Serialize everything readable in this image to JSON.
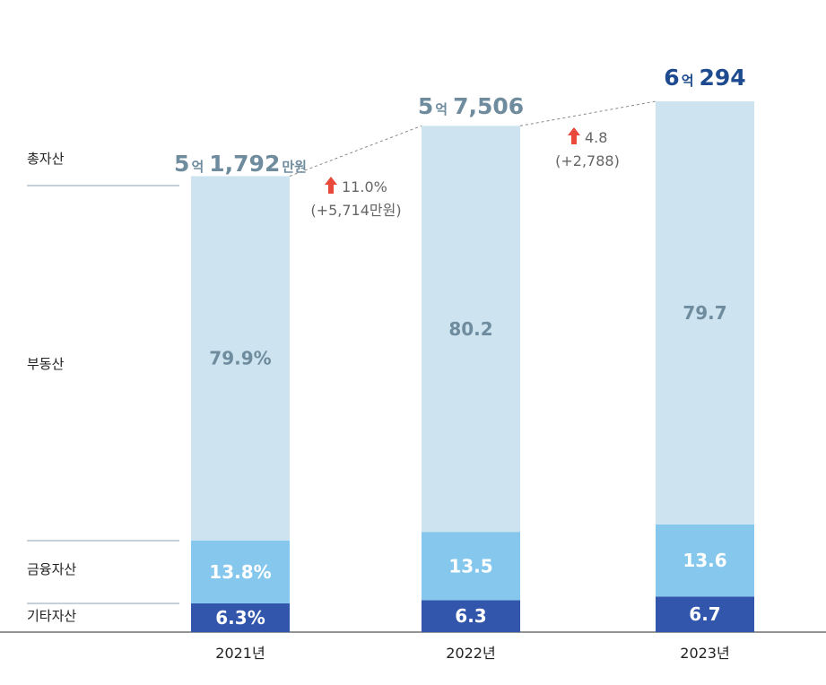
{
  "chart_data": {
    "type": "bar",
    "stacked": true,
    "categories": [
      "2021년",
      "2022년",
      "2023년"
    ],
    "row_labels": [
      "총자산",
      "부동산",
      "금융자산",
      "기타자산"
    ],
    "series": [
      {
        "name": "부동산",
        "values": [
          79.9,
          80.2,
          79.7
        ],
        "labels": [
          "79.9%",
          "80.2",
          "79.7"
        ],
        "color": "#cde4f0",
        "text_color": "#6f8c9e"
      },
      {
        "name": "금융자산",
        "values": [
          13.8,
          13.5,
          13.6
        ],
        "labels": [
          "13.8%",
          "13.5",
          "13.6"
        ],
        "color": "#86c8ed",
        "text_color": "#ffffff"
      },
      {
        "name": "기타자산",
        "values": [
          6.3,
          6.3,
          6.7
        ],
        "labels": [
          "6.3%",
          "6.3",
          "6.7"
        ],
        "color": "#3356ad",
        "text_color": "#ffffff"
      }
    ],
    "totals": [
      {
        "value_manwon": 51792,
        "label_num1": "5",
        "label_unit1": "억",
        "label_num2": "1,792",
        "label_unit2": "만원",
        "color": "#6f8c9e"
      },
      {
        "value_manwon": 57506,
        "label_num1": "5",
        "label_unit1": "억",
        "label_num2": "7,506",
        "label_unit2": "",
        "color": "#6f8c9e"
      },
      {
        "value_manwon": 60294,
        "label_num1": "6",
        "label_unit1": "억",
        "label_num2": "294",
        "label_unit2": "",
        "color": "#1e4b8f"
      }
    ],
    "changes": [
      {
        "pct": "11.0%",
        "abs": "(+5,714만원)"
      },
      {
        "pct": "4.8",
        "abs": "(+2,788)"
      }
    ],
    "arrow_color": "#e8493b",
    "connector_color": "#888888"
  }
}
